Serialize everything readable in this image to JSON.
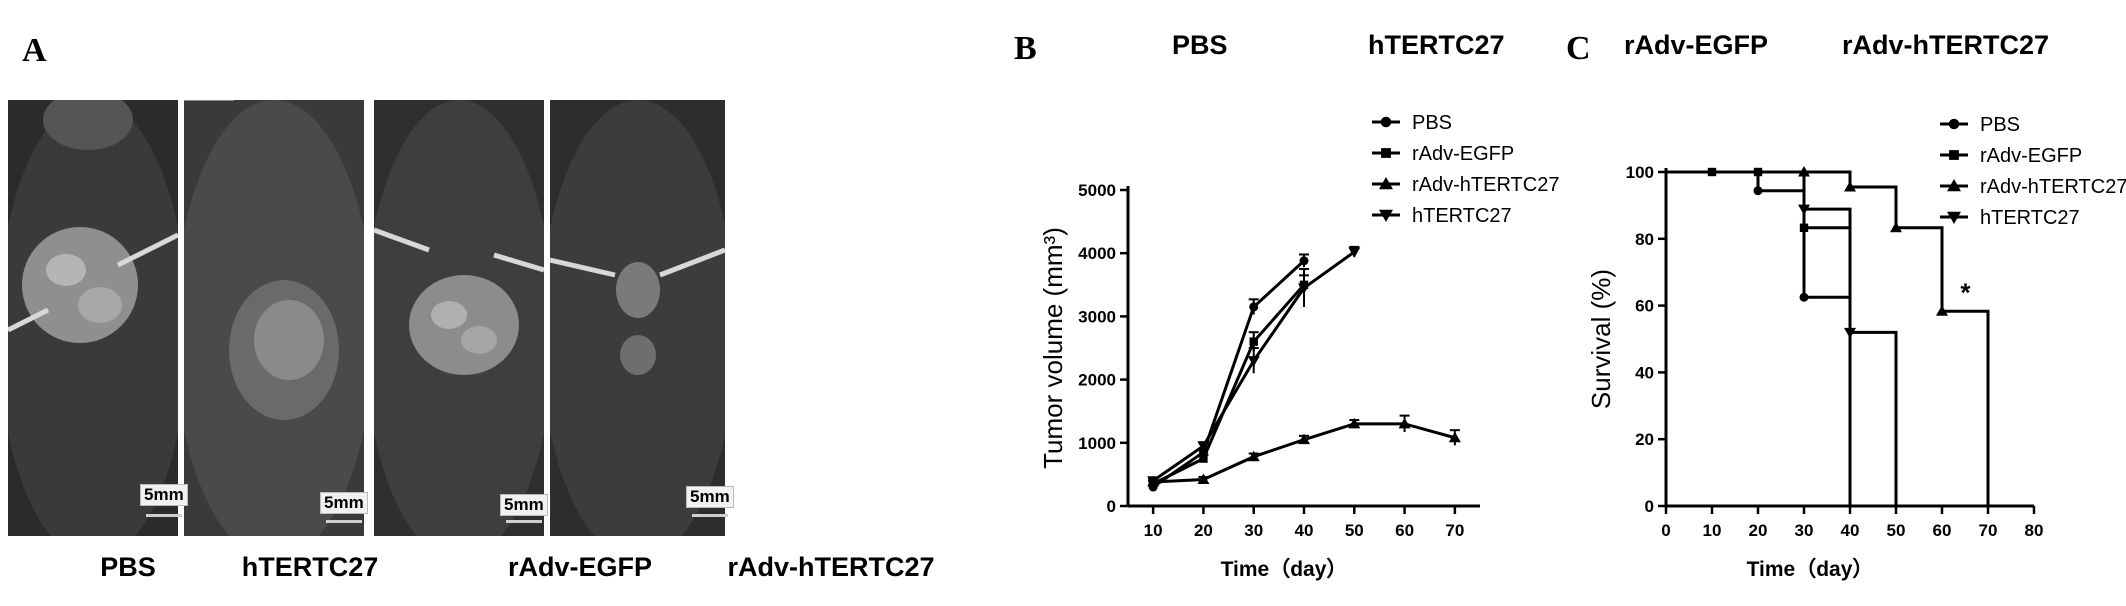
{
  "panel_a": {
    "letter": "A",
    "photos": [
      {
        "caption": "PBS",
        "scale_label": "5mm"
      },
      {
        "caption": "hTERTC27",
        "scale_label": "5mm"
      },
      {
        "caption": "rAdv-EGFP",
        "scale_label": "5mm"
      },
      {
        "caption": "rAdv-hTERTC27",
        "scale_label": "5mm"
      }
    ]
  },
  "panel_b": {
    "letter": "B",
    "header_left": "PBS",
    "header_right": "hTERTC27"
  },
  "panel_c": {
    "letter": "C",
    "header_left": "rAdv-EGFP",
    "header_right": "rAdv-hTERTC27"
  },
  "chart_data": [
    {
      "type": "line",
      "ylabel": "Tumor volume (mm³)",
      "xlabel": "Time（day）",
      "xlim": [
        5,
        75
      ],
      "ylim": [
        0,
        5000
      ],
      "xticks": [
        10,
        20,
        30,
        40,
        50,
        60,
        70
      ],
      "yticks": [
        0,
        1000,
        2000,
        3000,
        4000,
        5000
      ],
      "legend": [
        "PBS",
        "rAdv-EGFP",
        "rAdv-hTERTC27",
        "hTERTC27"
      ],
      "legend_position": "top-right",
      "series": [
        {
          "name": "PBS",
          "marker": "circle",
          "x": [
            10,
            20,
            30,
            40
          ],
          "y": [
            300,
            850,
            3150,
            3880
          ],
          "err": [
            40,
            60,
            120,
            100
          ]
        },
        {
          "name": "rAdv-EGFP",
          "marker": "square",
          "x": [
            10,
            20,
            30,
            40
          ],
          "y": [
            350,
            750,
            2600,
            3500
          ],
          "err": [
            40,
            60,
            150,
            150
          ]
        },
        {
          "name": "rAdv-hTERTC27",
          "marker": "triangle",
          "x": [
            10,
            20,
            30,
            40,
            50,
            60,
            70
          ],
          "y": [
            380,
            420,
            780,
            1050,
            1300,
            1300,
            1080
          ],
          "err": [
            30,
            40,
            50,
            60,
            60,
            130,
            120
          ]
        },
        {
          "name": "hTERTC27",
          "marker": "triangle-down",
          "x": [
            10,
            20,
            30,
            40,
            50
          ],
          "y": [
            400,
            950,
            2300,
            3450,
            4020
          ],
          "err": [
            40,
            60,
            200,
            300,
            80
          ]
        }
      ]
    },
    {
      "type": "line",
      "ylabel": "Survival (%)",
      "xlabel": "Time（day）",
      "xlim": [
        0,
        80
      ],
      "ylim": [
        0,
        100
      ],
      "xticks": [
        0,
        10,
        20,
        30,
        40,
        50,
        60,
        70,
        80
      ],
      "yticks": [
        0,
        20,
        40,
        60,
        80,
        100
      ],
      "legend": [
        "PBS",
        "rAdv-EGFP",
        "rAdv-hTERTC27",
        "hTERTC27"
      ],
      "legend_position": "top-right",
      "annotation": "*",
      "series": [
        {
          "name": "PBS",
          "marker": "circle",
          "steps": [
            [
              0,
              100
            ],
            [
              20,
              94.4
            ],
            [
              30,
              62.5
            ],
            [
              40,
              0
            ]
          ],
          "markers": [
            [
              20,
              94.4
            ],
            [
              30,
              62.5
            ]
          ]
        },
        {
          "name": "rAdv-EGFP",
          "marker": "square",
          "steps": [
            [
              0,
              100
            ],
            [
              10,
              100
            ],
            [
              30,
              83.3
            ],
            [
              40,
              0
            ]
          ],
          "markers": [
            [
              10,
              100
            ],
            [
              20,
              100
            ],
            [
              30,
              83.3
            ]
          ]
        },
        {
          "name": "rAdv-hTERTC27",
          "marker": "triangle",
          "steps": [
            [
              0,
              100
            ],
            [
              40,
              95.5
            ],
            [
              50,
              83.3
            ],
            [
              60,
              58.3
            ],
            [
              70,
              0
            ]
          ],
          "markers": [
            [
              30,
              100
            ],
            [
              40,
              95.5
            ],
            [
              50,
              83.3
            ],
            [
              60,
              58.3
            ]
          ]
        },
        {
          "name": "hTERTC27",
          "marker": "triangle-down",
          "steps": [
            [
              0,
              100
            ],
            [
              30,
              88.9
            ],
            [
              40,
              52
            ],
            [
              50,
              0
            ]
          ],
          "markers": [
            [
              30,
              88.9
            ],
            [
              40,
              52
            ]
          ]
        }
      ]
    }
  ]
}
